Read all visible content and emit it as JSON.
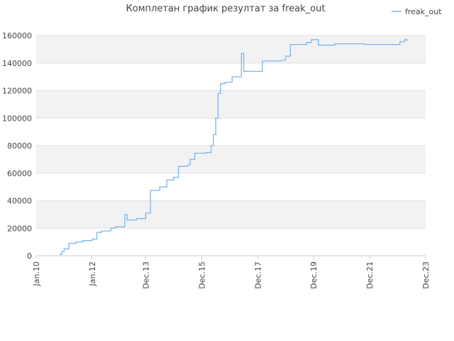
{
  "chart_data": {
    "type": "line",
    "title": "Комплетан график резултат за freak_out",
    "x": [
      "2010-11",
      "2010-12",
      "2011-01",
      "2011-03",
      "2011-06",
      "2011-09",
      "2012-01",
      "2012-03",
      "2012-05",
      "2012-09",
      "2012-11",
      "2013-03",
      "2013-04",
      "2013-08",
      "2013-12",
      "2014-02",
      "2014-06",
      "2014-09",
      "2014-12",
      "2015-02",
      "2015-06",
      "2015-07",
      "2015-09",
      "2016-02",
      "2016-04",
      "2016-05",
      "2016-06",
      "2016-07",
      "2016-08",
      "2016-10",
      "2017-01",
      "2017-05",
      "2017-06",
      "2017-08",
      "2018-02",
      "2018-10",
      "2018-12",
      "2019-02",
      "2019-09",
      "2019-11",
      "2020-02",
      "2020-09",
      "2021-10",
      "2023-01",
      "2023-03",
      "2023-04"
    ],
    "series": [
      {
        "name": "freak_out",
        "color": "#7cb5ec",
        "values": [
          1000,
          3000,
          5000,
          9000,
          10000,
          11000,
          12000,
          17000,
          18000,
          20000,
          21000,
          30000,
          26000,
          27000,
          31000,
          47500,
          50000,
          55000,
          57000,
          65000,
          66000,
          70000,
          74500,
          75000,
          80000,
          88000,
          100000,
          118000,
          125000,
          126000,
          130000,
          147000,
          134000,
          134000,
          141500,
          142000,
          145000,
          153500,
          155000,
          157000,
          153000,
          154000,
          153500,
          155500,
          157000,
          156000
        ]
      }
    ],
    "xlim": [
      "2010-01",
      "2023-12"
    ],
    "xticks": [
      {
        "value": "2010-01",
        "label": "Jan.10"
      },
      {
        "value": "2012-01",
        "label": "Jan.12"
      },
      {
        "value": "2013-12",
        "label": "Dec.13"
      },
      {
        "value": "2015-12",
        "label": "Dec.15"
      },
      {
        "value": "2017-12",
        "label": "Dec.17"
      },
      {
        "value": "2019-12",
        "label": "Dec.19"
      },
      {
        "value": "2021-12",
        "label": "Dec.21"
      },
      {
        "value": "2023-12",
        "label": "Dec.23"
      }
    ],
    "ylim": [
      0,
      160000
    ],
    "yticks": [
      0,
      20000,
      40000,
      60000,
      80000,
      100000,
      120000,
      140000,
      160000
    ],
    "grid": true,
    "legend": "top-right"
  }
}
